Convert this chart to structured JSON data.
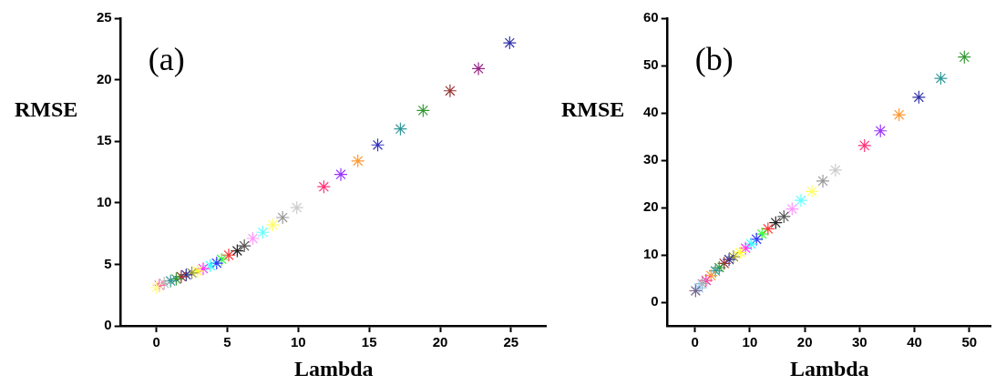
{
  "chart_data": [
    {
      "type": "scatter",
      "xlabel": "Lambda",
      "ylabel": "RMSE",
      "annotations": [
        "(a)"
      ],
      "xlim": [
        -2.5,
        27.5
      ],
      "ylim": [
        0,
        25
      ],
      "xticks": [
        0,
        5,
        10,
        15,
        20,
        25
      ],
      "yticks": [
        0,
        5,
        10,
        15,
        20,
        25
      ],
      "grid": false,
      "legend": false,
      "marker": "cross",
      "series": [
        {
          "x": [
            24.9,
            22.7,
            20.7,
            18.8,
            17.2,
            15.6,
            14.2,
            13.0,
            11.8,
            9.9,
            8.9,
            8.2,
            7.5,
            6.8,
            6.2,
            5.7,
            5.1,
            4.6,
            4.25,
            3.8,
            3.3,
            2.9,
            2.5,
            2.1,
            1.75,
            1.4,
            1.0,
            0.55,
            0.2,
            0.0
          ],
          "values": [
            23.0,
            20.9,
            19.1,
            17.5,
            16.0,
            14.7,
            13.4,
            12.3,
            11.3,
            9.6,
            8.8,
            8.2,
            7.6,
            7.1,
            6.5,
            6.1,
            5.75,
            5.4,
            5.1,
            4.9,
            4.65,
            4.45,
            4.3,
            4.15,
            4.0,
            3.8,
            3.65,
            3.45,
            3.3,
            3.1
          ],
          "colors": [
            "#3333aa",
            "#992288",
            "#993333",
            "#339933",
            "#339999",
            "#3333bb",
            "#ff9933",
            "#9933ff",
            "#ff3377",
            "#cccccc",
            "#999999",
            "#ffff66",
            "#66ffff",
            "#ff99ff",
            "#555555",
            "#222222",
            "#ff3333",
            "#33ff33",
            "#3333ff",
            "#33ffff",
            "#ff33ff",
            "#ffff33",
            "#999933",
            "#333399",
            "#993333",
            "#339933",
            "#339999",
            "#bbbbbb",
            "#ff66aa",
            "#ffff99"
          ]
        }
      ]
    },
    {
      "type": "scatter",
      "xlabel": "Lambda",
      "ylabel": "RMSE",
      "annotations": [
        "(b)"
      ],
      "xlim": [
        -5,
        54
      ],
      "ylim": [
        -5,
        60
      ],
      "xticks": [
        0,
        10,
        20,
        30,
        40,
        50
      ],
      "yticks": [
        0,
        10,
        20,
        30,
        40,
        50,
        60
      ],
      "grid": false,
      "legend": false,
      "marker": "cross",
      "series": [
        {
          "x": [
            49.1,
            44.8,
            40.8,
            37.2,
            33.8,
            30.9,
            25.6,
            23.3,
            21.3,
            19.3,
            17.7,
            16.2,
            14.7,
            13.3,
            12.2,
            11.2,
            10.2,
            9.2,
            8.2,
            7.0,
            6.2,
            5.3,
            4.4,
            3.7,
            2.9,
            2.0,
            1.3,
            0.7,
            0.1
          ],
          "values": [
            51.8,
            47.3,
            43.3,
            39.6,
            36.2,
            33.1,
            27.9,
            25.6,
            23.4,
            21.5,
            19.7,
            18.1,
            16.8,
            15.5,
            14.4,
            13.3,
            12.3,
            11.4,
            10.5,
            9.6,
            9.0,
            8.2,
            7.3,
            6.6,
            5.6,
            4.6,
            3.9,
            3.0,
            2.4
          ],
          "colors": [
            "#339933",
            "#339999",
            "#3333aa",
            "#ff9933",
            "#9933ff",
            "#ff3377",
            "#cccccc",
            "#999999",
            "#ffff66",
            "#66ffff",
            "#ff99ff",
            "#555555",
            "#222222",
            "#ff3333",
            "#33ff33",
            "#3333ff",
            "#33ffff",
            "#ff33ff",
            "#ffff33",
            "#999933",
            "#333399",
            "#993333",
            "#339933",
            "#339999",
            "#ff9933",
            "#ff33aa",
            "#aaaaaa",
            "#99ccff",
            "#776688"
          ]
        }
      ]
    }
  ]
}
